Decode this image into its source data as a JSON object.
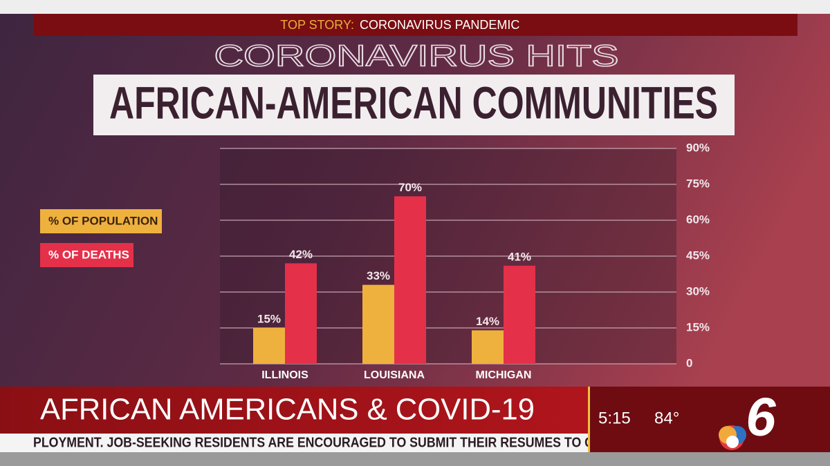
{
  "banner": {
    "label": "TOP STORY:",
    "text": "CORONAVIRUS PANDEMIC"
  },
  "headline": {
    "kicker": "CORONAVIRUS HITS",
    "title": "AFRICAN-AMERICAN COMMUNITIES"
  },
  "chart_data": {
    "type": "bar",
    "categories": [
      "ILLINOIS",
      "LOUISIANA",
      "MICHIGAN"
    ],
    "series": [
      {
        "name": "% OF POPULATION",
        "color": "#efb13e",
        "values": [
          15,
          33,
          14
        ],
        "value_labels": [
          "15%",
          "33%",
          "14%"
        ]
      },
      {
        "name": "% OF DEATHS",
        "color": "#e5304a",
        "values": [
          42,
          70,
          41
        ],
        "value_labels": [
          "42%",
          "70%",
          "41%"
        ]
      }
    ],
    "ylim": [
      0,
      90
    ],
    "yticks": [
      0,
      {
        "value": 15,
        "label": "15%"
      },
      {
        "value": 30,
        "label": "30%"
      },
      {
        "value": 45,
        "label": "45%"
      },
      {
        "value": 60,
        "label": "60%"
      },
      {
        "value": 75,
        "label": "75%"
      },
      {
        "value": 90,
        "label": "90%"
      }
    ],
    "grid": true,
    "legend": "left",
    "axis_side": "right"
  },
  "lower_third": {
    "headline": "AFRICAN AMERICANS & COVID-19",
    "ticker": "PLOYMENT. JOB-SEEKING RESIDENTS ARE ENCOURAGED TO SUBMIT THEIR RESUMES TO C",
    "time": "5:15",
    "temperature": "84°",
    "station": "6"
  }
}
